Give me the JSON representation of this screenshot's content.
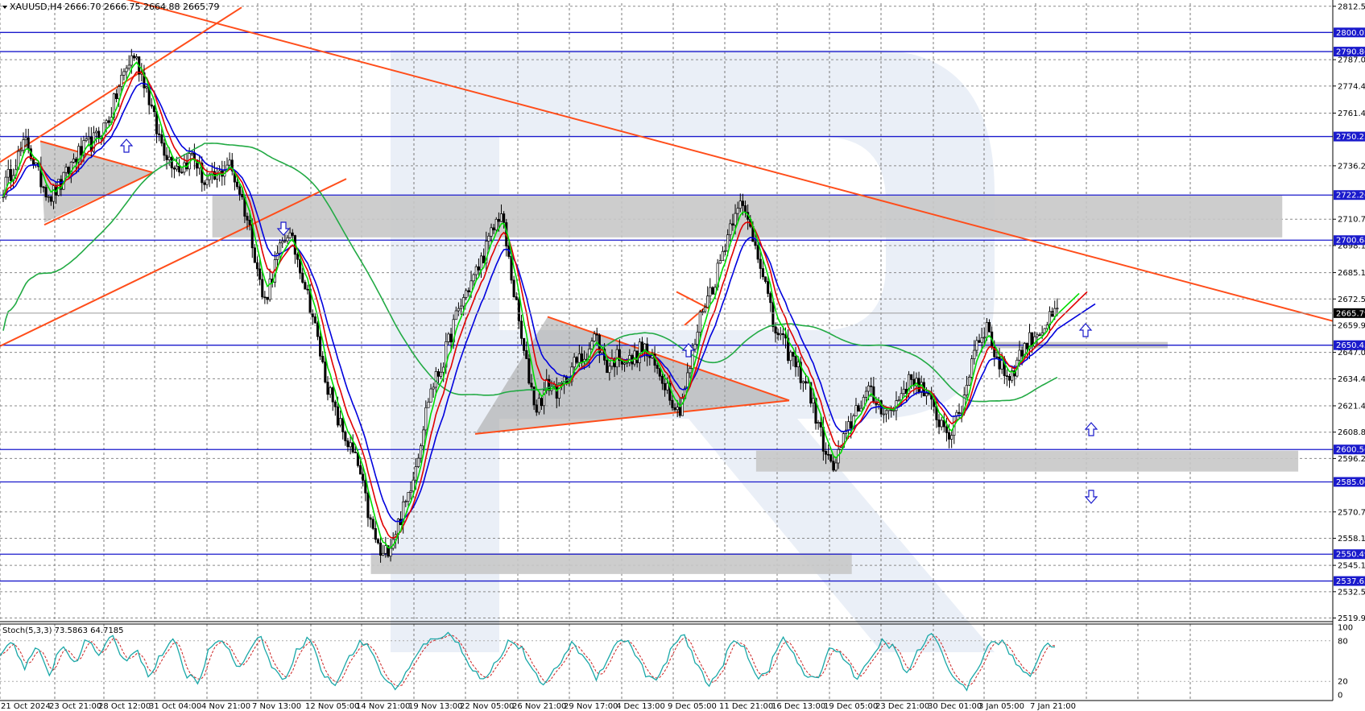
{
  "header": {
    "symbol": "XAUUSD,H4",
    "ohlc": "2666.70 2666.75 2664.88 2665.79"
  },
  "stoch_header": "Stoch(5,3,3) 73.5863 64.7185",
  "colors": {
    "fast_ma": "#00dd00",
    "mid_ma": "#e00000",
    "slow_ma": "#0000dd",
    "long_ma": "#22aa44",
    "trend": "#ff4d1a",
    "level": "#1a1acc",
    "zone": "#c8c8c8",
    "candle": "#000000",
    "stoch_main": "#1aa8a8",
    "stoch_signal": "#cc2222"
  },
  "icons": [
    "up-arrow-icon",
    "down-arrow-icon",
    "dropdown-triangle-icon"
  ],
  "chart_data": {
    "type": "candlestick",
    "y_range": [
      2519,
      2814
    ],
    "price_ticks": [
      "2812.55",
      "2787.00",
      "2774.40",
      "2761.45",
      "2736.25",
      "2710.70",
      "2698.10",
      "2685.15",
      "2672.55",
      "2659.95",
      "2647.00",
      "2634.40",
      "2621.45",
      "2608.85",
      "2596.25",
      "2570.70",
      "2558.10",
      "2545.15",
      "2532.55",
      "2519.95"
    ],
    "levels": [
      {
        "value": 2800.02,
        "label": "2800.02"
      },
      {
        "value": 2790.86,
        "label": "2790.86"
      },
      {
        "value": 2750.23,
        "label": "2750.23"
      },
      {
        "value": 2722.26,
        "label": "2722.26"
      },
      {
        "value": 2700.68,
        "label": "2700.68"
      },
      {
        "value": 2650.45,
        "label": "2650.45"
      },
      {
        "value": 2600.56,
        "label": "2600.56"
      },
      {
        "value": 2585.06,
        "label": "2585.06"
      },
      {
        "value": 2550.49,
        "label": "2550.49"
      },
      {
        "value": 2537.65,
        "label": "2537.65"
      }
    ],
    "current_price": {
      "value": 2665.79,
      "label": "2665.79"
    },
    "x_labels": [
      "21 Oct 2024",
      "23 Oct 21:00",
      "28 Oct 12:00",
      "31 Oct 04:00",
      "4 Nov 21:00",
      "7 Nov 13:00",
      "12 Nov 05:00",
      "14 Nov 21:00",
      "19 Nov 13:00",
      "22 Nov 05:00",
      "26 Nov 21:00",
      "29 Nov 17:00",
      "4 Dec 13:00",
      "9 Dec 05:00",
      "11 Dec 21:00",
      "16 Dec 13:00",
      "19 Dec 05:00",
      "23 Dec 21:00",
      "30 Dec 01:00",
      "3 Jan 05:00",
      "7 Jan 21:00"
    ],
    "close_path": [
      2725,
      2738,
      2748,
      2731,
      2722,
      2728,
      2740,
      2745,
      2750,
      2760,
      2778,
      2790,
      2776,
      2752,
      2740,
      2735,
      2742,
      2728,
      2730,
      2738,
      2724,
      2702,
      2670,
      2690,
      2705,
      2690,
      2668,
      2640,
      2618,
      2605,
      2592,
      2565,
      2548,
      2560,
      2575,
      2598,
      2628,
      2640,
      2660,
      2675,
      2686,
      2700,
      2715,
      2680,
      2645,
      2620,
      2632,
      2628,
      2640,
      2645,
      2655,
      2640,
      2646,
      2642,
      2650,
      2640,
      2632,
      2618,
      2640,
      2668,
      2680,
      2700,
      2720,
      2708,
      2690,
      2660,
      2650,
      2640,
      2630,
      2608,
      2590,
      2605,
      2620,
      2628,
      2622,
      2618,
      2630,
      2635,
      2625,
      2615,
      2608,
      2622,
      2650,
      2660,
      2642,
      2635,
      2648,
      2655,
      2660,
      2666
    ],
    "stoch": {
      "ticks": [
        "100",
        "80",
        "20",
        "0"
      ],
      "main_base": [
        60,
        80,
        40,
        70,
        30,
        75,
        45,
        85,
        55,
        90,
        50,
        70,
        25,
        60,
        80,
        30,
        20,
        75,
        85,
        40,
        60,
        90,
        35,
        25,
        70,
        85,
        30,
        15,
        50,
        80,
        65,
        20,
        10,
        40,
        70,
        85,
        90,
        75,
        40,
        20,
        50,
        80,
        70,
        30,
        15,
        45,
        75,
        60,
        25,
        55,
        85,
        70,
        30,
        20,
        65,
        90,
        50,
        15,
        35,
        80,
        70,
        25,
        40,
        85,
        60,
        20,
        30,
        75,
        55,
        25,
        45,
        80,
        70,
        30,
        65,
        90,
        60,
        20,
        10,
        50,
        80,
        75,
        40,
        30,
        70,
        74
      ]
    }
  }
}
